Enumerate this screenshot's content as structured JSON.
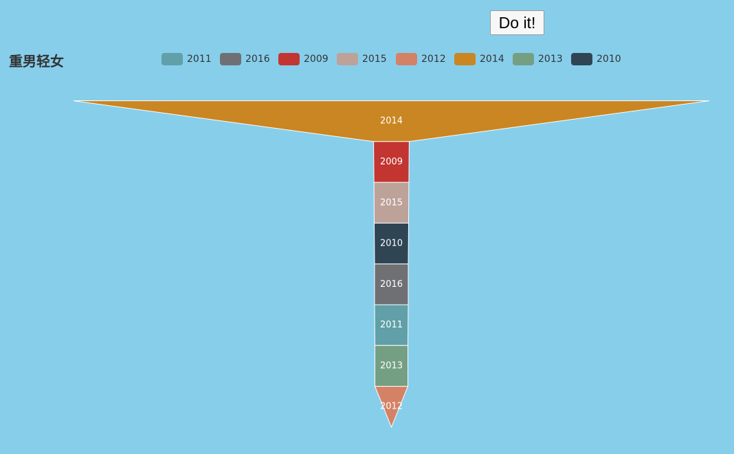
{
  "button": {
    "label": "Do it!"
  },
  "chart_data": {
    "type": "funnel",
    "title": "重男轻女",
    "legend": [
      "2011",
      "2016",
      "2009",
      "2015",
      "2012",
      "2014",
      "2013",
      "2010"
    ],
    "colors": {
      "2011": "#61a0a8",
      "2016": "#6e7074",
      "2009": "#c23531",
      "2015": "#bda29a",
      "2012": "#d48265",
      "2014": "#ca8622",
      "2013": "#749f83",
      "2010": "#2f4554"
    },
    "sort": "descending",
    "order": [
      "2014",
      "2009",
      "2015",
      "2010",
      "2016",
      "2011",
      "2013",
      "2012"
    ],
    "relative_width": {
      "2014": 1.0,
      "2009": 0.056,
      "2015": 0.055,
      "2010": 0.054,
      "2016": 0.053,
      "2011": 0.053,
      "2013": 0.052,
      "2012": 0.052
    },
    "border_color": "#ffffff",
    "label_position": "inside"
  }
}
